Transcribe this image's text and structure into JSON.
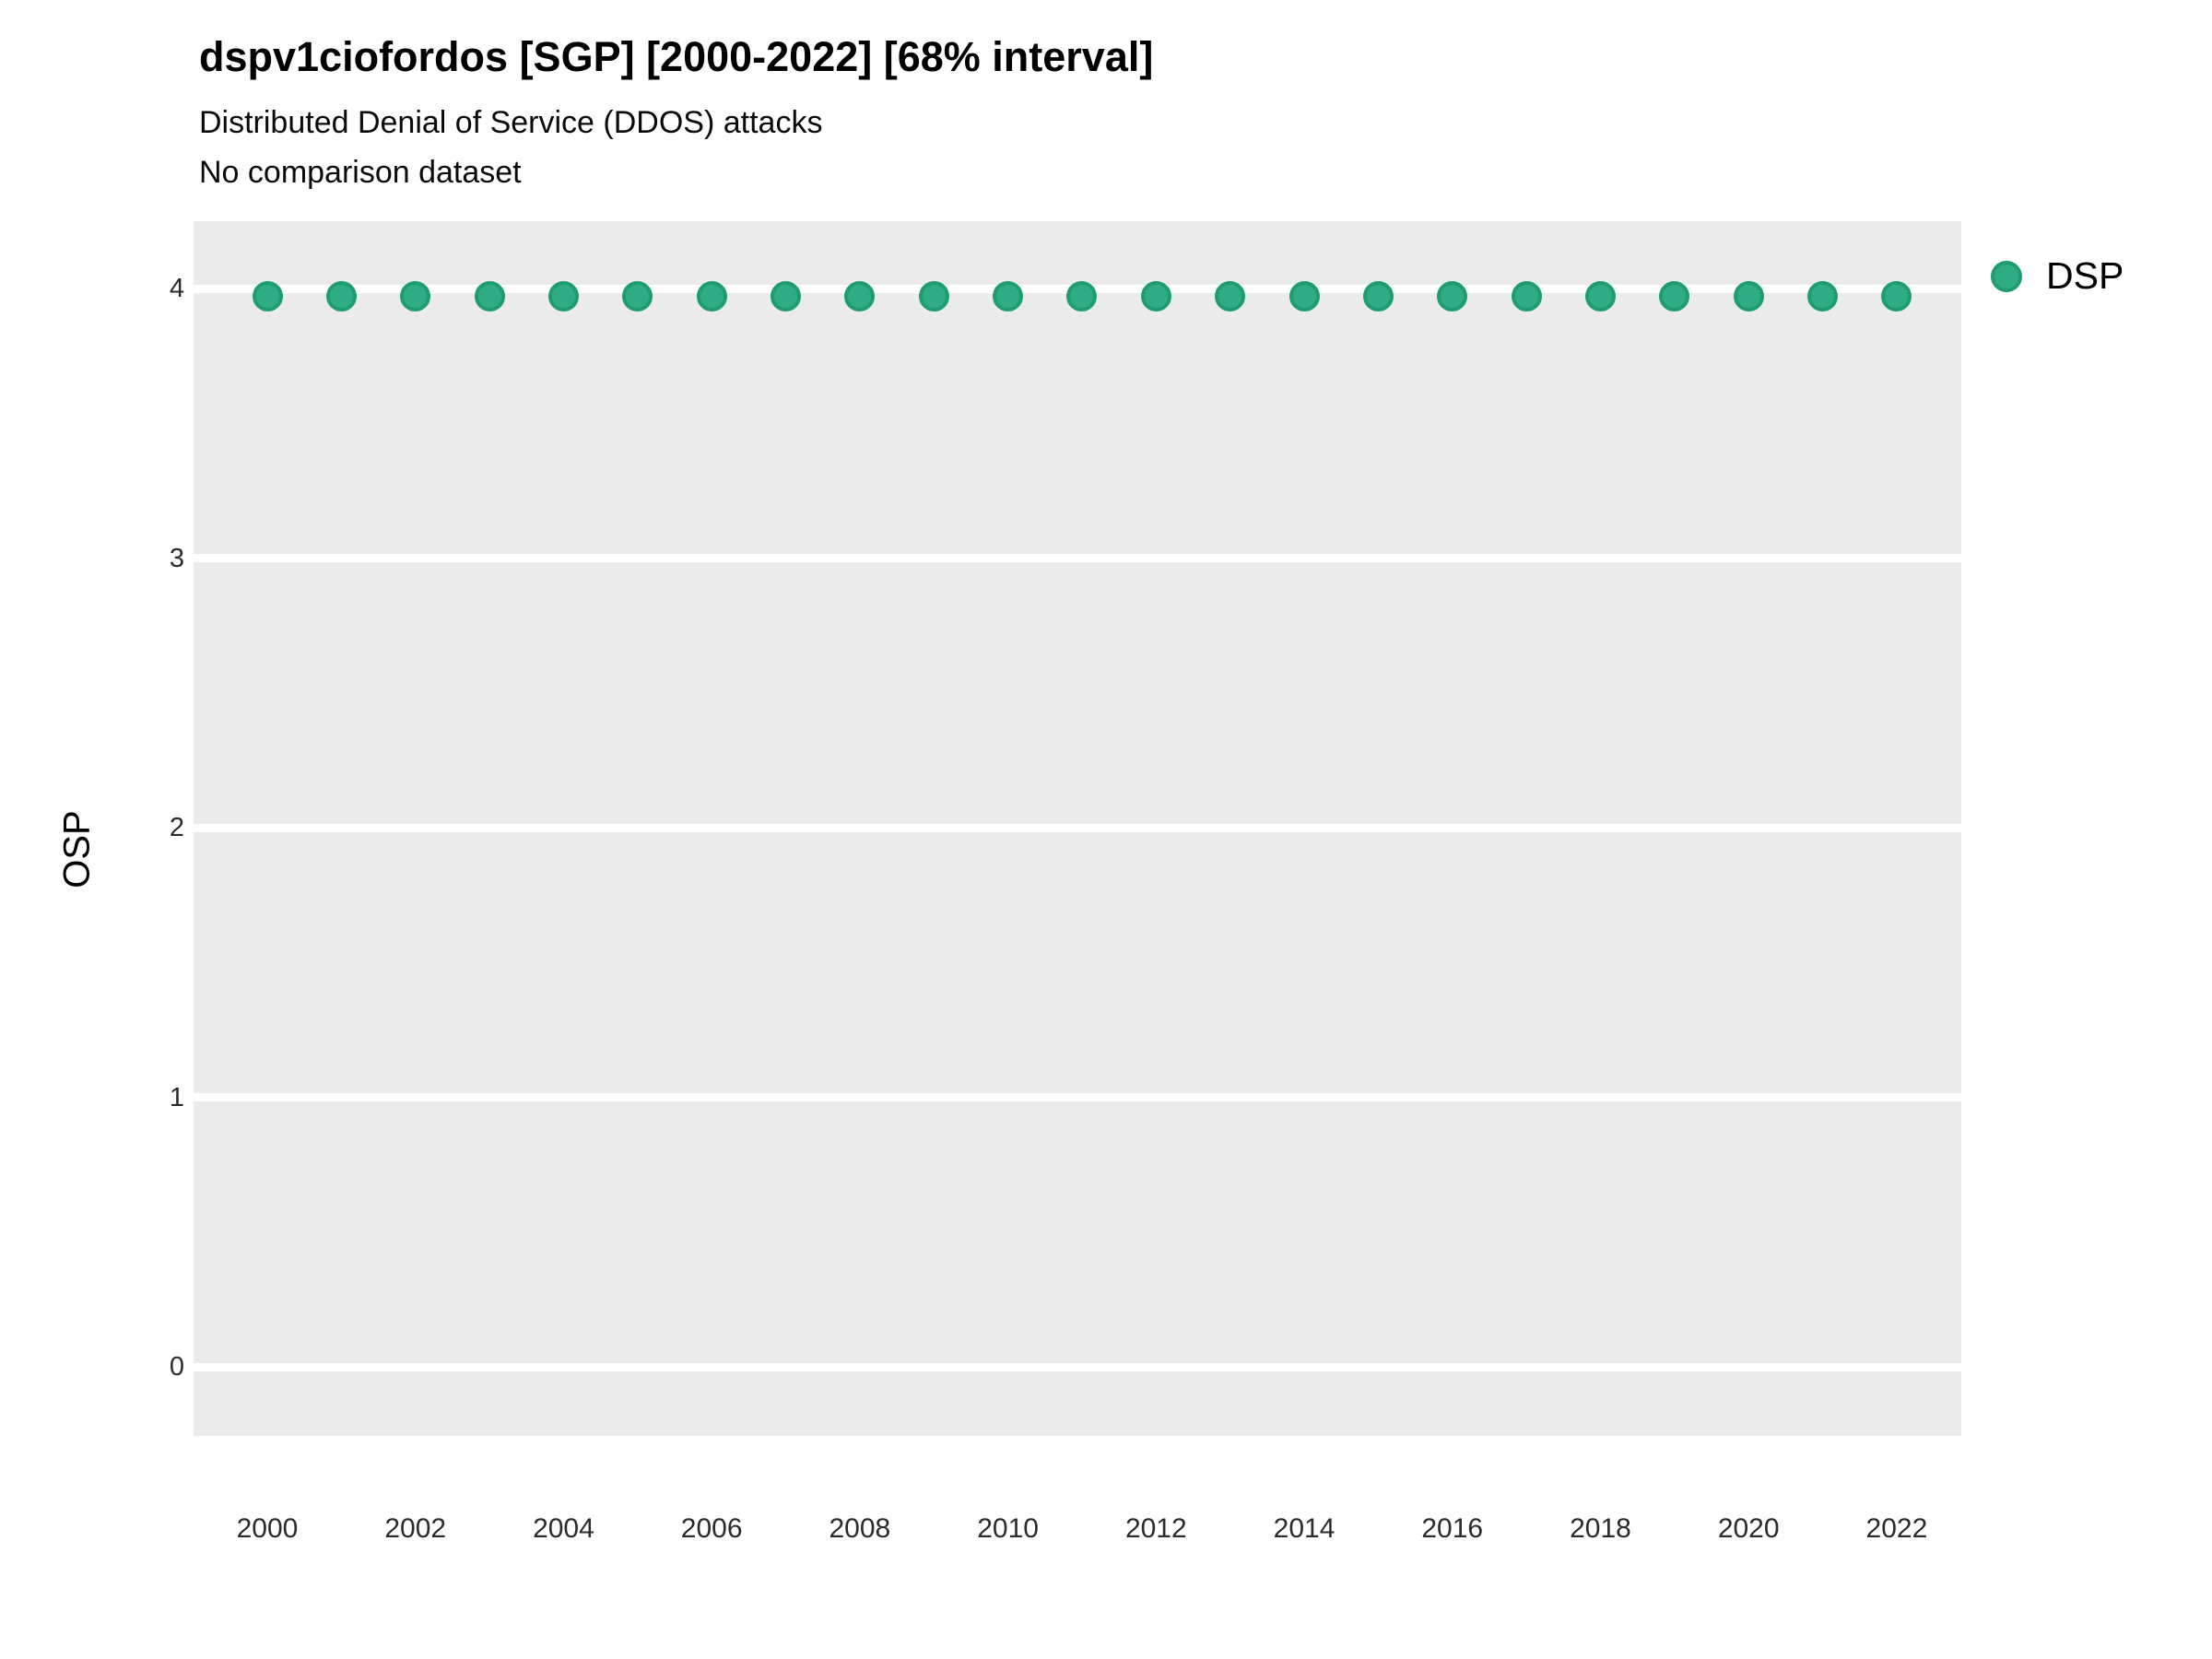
{
  "header": {
    "title": "dspv1ciofordos [SGP] [2000-2022] [68% interval]",
    "subtitle": "Distributed Denial of Service (DDOS) attacks",
    "note": "No comparison dataset"
  },
  "legend": {
    "label": "DSP",
    "marker_color": "#2FAC84"
  },
  "colors": {
    "panel_background": "#EBEBEB",
    "gridline": "#FFFFFF",
    "point_fill": "#2FAC84",
    "point_stroke": "#1E9C73",
    "text": "#000000"
  },
  "chart_data": {
    "type": "scatter",
    "title": "dspv1ciofordos [SGP] [2000-2022] [68% interval]",
    "subtitle": "Distributed Denial of Service (DDOS) attacks",
    "note": "No comparison dataset",
    "xlabel": "",
    "ylabel": "OSP",
    "x": [
      2000,
      2001,
      2002,
      2003,
      2004,
      2005,
      2006,
      2007,
      2008,
      2009,
      2010,
      2011,
      2012,
      2013,
      2014,
      2015,
      2016,
      2017,
      2018,
      2019,
      2020,
      2021,
      2022
    ],
    "series": [
      {
        "name": "DSP",
        "values": [
          3.97,
          3.97,
          3.97,
          3.97,
          3.97,
          3.97,
          3.97,
          3.97,
          3.97,
          3.97,
          3.97,
          3.97,
          3.97,
          3.97,
          3.97,
          3.97,
          3.97,
          3.97,
          3.97,
          3.97,
          3.97,
          3.97,
          3.97
        ],
        "color": "#2FAC84"
      }
    ],
    "ylim": [
      -0.26,
      4.25
    ],
    "xlim": [
      1999,
      2023
    ],
    "yticks": [
      0,
      1,
      2,
      3,
      4
    ],
    "xticks": [
      2000,
      2002,
      2004,
      2006,
      2008,
      2010,
      2012,
      2014,
      2016,
      2018,
      2020,
      2022
    ],
    "grid": "horizontal-white-on-gray",
    "legend_position": "right-top"
  }
}
